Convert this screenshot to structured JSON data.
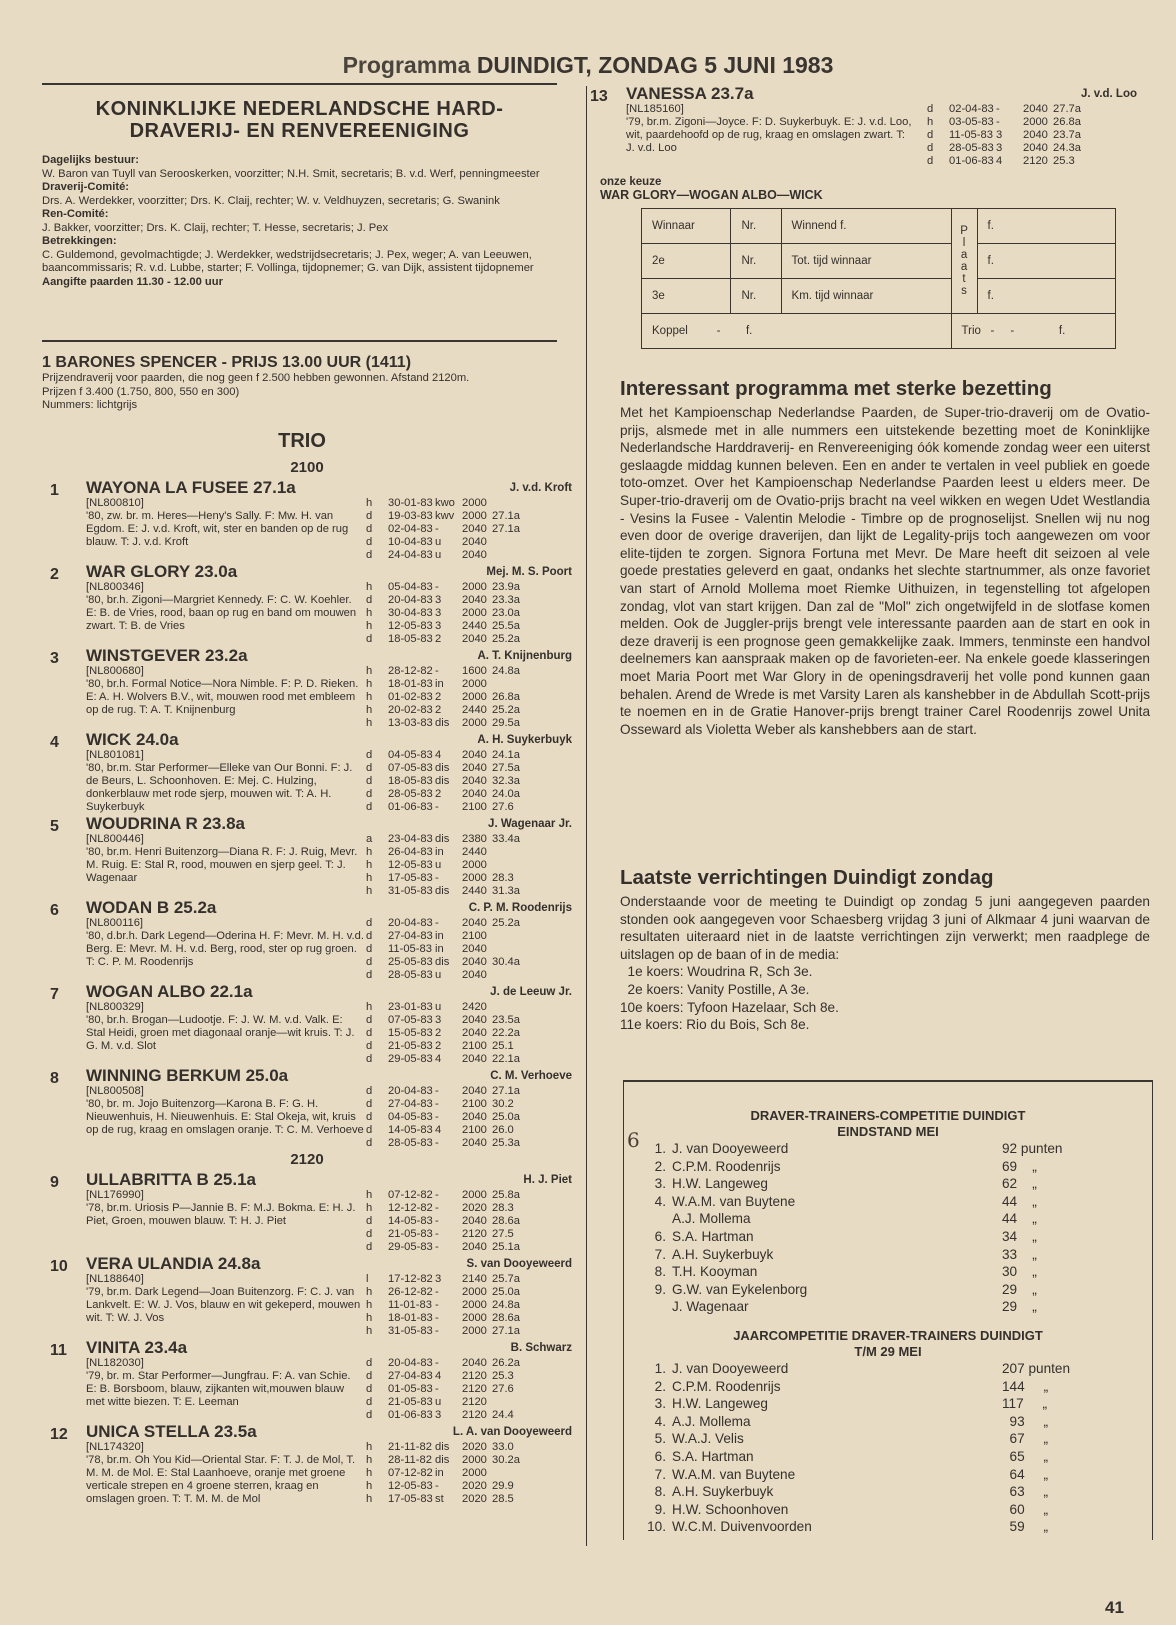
{
  "title": {
    "prefix": "Programma",
    "main": "DUINDIGT, ZONDAG 5 JUNI 1983"
  },
  "club": {
    "name_line1": "KONINKLIJKE NEDERLANDSCHE HARD-",
    "name_line2": "DRAVERIJ- EN RENVEREENIGING",
    "sections": [
      {
        "label": "Dagelijks bestuur:",
        "text": "W. Baron van Tuyll van Serooskerken, voorzitter; N.H. Smit, secretaris; B. v.d. Werf, penningmeester"
      },
      {
        "label": "Draverij-Comité:",
        "text": "Drs. A. Werdekker, voorzitter; Drs. K. Claij, rechter; W. v. Veldhuyzen, secretaris; G. Swanink"
      },
      {
        "label": "Ren-Comité:",
        "text": "J. Bakker, voorzitter; Drs. K. Claij, rechter; T. Hesse, secretaris; J. Pex"
      },
      {
        "label": "Betrekkingen:",
        "text": "C. Guldemond, gevolmachtigde; J. Werdekker, wedstrijdsecretaris; J. Pex, weger; A. van Leeuwen, baancommissaris; R. v.d. Lubbe, starter; F. Vollinga, tijdopnemer; G. van Dijk, assistent tijdopnemer"
      }
    ],
    "aangifte": "Aangifte paarden 11.30 - 12.00 uur"
  },
  "race": {
    "title": "1 BARONES SPENCER - PRIJS 13.00 UUR (1411)",
    "conditions": "Prijzendraverij voor paarden, die nog geen f 2.500 hebben gewonnen. Afstand 2120m.",
    "prizes": "Prijzen f 3.400 (1.750, 800, 550 en 300)",
    "numbers": "Nummers: lichtgrijs",
    "type": "TRIO",
    "distance_1": "2100",
    "distance_2": "2120"
  },
  "entries": [
    {
      "num": "1",
      "name": "WAYONA LA FUSEE 27.1a",
      "id": "[NL800810]",
      "desc": "'80, zw. br. m. Heres—Heny's Sally. F: Mw. H. van Egdom. E: J. v.d. Kroft, wit, ster en banden op de rug blauw. T: J. v.d. Kroft",
      "trainer": "J. v.d. Kroft",
      "rows": [
        [
          "h",
          "30-01-83",
          "kwo",
          "2000",
          ""
        ],
        [
          "d",
          "19-03-83",
          "kwv",
          "2000",
          "27.1a"
        ],
        [
          "d",
          "02-04-83",
          "-",
          "2040",
          "27.1a"
        ],
        [
          "d",
          "10-04-83",
          "u",
          "2040",
          ""
        ],
        [
          "d",
          "24-04-83",
          "u",
          "2040",
          ""
        ]
      ]
    },
    {
      "num": "2",
      "name": "WAR GLORY 23.0a",
      "id": "[NL800346]",
      "desc": "'80, br.h. Zigoni—Margriet Kennedy. F: C. W. Koehler. E: B. de Vries, rood, baan op rug en band om mouwen zwart. T: B. de Vries",
      "trainer": "Mej. M. S. Poort",
      "rows": [
        [
          "h",
          "05-04-83",
          "-",
          "2000",
          "23.9a"
        ],
        [
          "d",
          "20-04-83",
          "3",
          "2040",
          "23.3a"
        ],
        [
          "h",
          "30-04-83",
          "3",
          "2000",
          "23.0a"
        ],
        [
          "h",
          "12-05-83",
          "3",
          "2440",
          "25.5a"
        ],
        [
          "d",
          "18-05-83",
          "2",
          "2040",
          "25.2a"
        ]
      ]
    },
    {
      "num": "3",
      "name": "WINSTGEVER 23.2a",
      "id": "[NL800680]",
      "desc": "'80, br.h. Formal Notice—Nora Nimble. F: P. D. Rieken. E: A. H. Wolvers B.V., wit, mouwen rood met embleem op de rug. T: A. T. Knijnenburg",
      "trainer": "A. T. Knijnenburg",
      "rows": [
        [
          "h",
          "28-12-82",
          "-",
          "1600",
          "24.8a"
        ],
        [
          "h",
          "18-01-83",
          "in",
          "2000",
          ""
        ],
        [
          "h",
          "01-02-83",
          "2",
          "2000",
          "26.8a"
        ],
        [
          "h",
          "20-02-83",
          "2",
          "2440",
          "25.2a"
        ],
        [
          "h",
          "13-03-83",
          "dis",
          "2000",
          "29.5a"
        ]
      ]
    },
    {
      "num": "4",
      "name": "WICK 24.0a",
      "id": "[NL801081]",
      "desc": "'80, br.m. Star Performer—Elleke van Our Bonni. F: J. de Beurs, L. Schoonhoven. E: Mej. C. Hulzing, donkerblauw met rode sjerp, mouwen wit. T: A. H. Suykerbuyk",
      "trainer": "A. H. Suykerbuyk",
      "rows": [
        [
          "d",
          "04-05-83",
          "4",
          "2040",
          "24.1a"
        ],
        [
          "d",
          "07-05-83",
          "dis",
          "2040",
          "27.5a"
        ],
        [
          "d",
          "18-05-83",
          "dis",
          "2040",
          "32.3a"
        ],
        [
          "d",
          "28-05-83",
          "2",
          "2040",
          "24.0a"
        ],
        [
          "d",
          "01-06-83",
          "-",
          "2100",
          "27.6"
        ]
      ]
    },
    {
      "num": "5",
      "name": "WOUDRINA R 23.8a",
      "id": "[NL800446]",
      "desc": "'80, br.m. Henri Buitenzorg—Diana R. F: J. Ruig, Mevr. M. Ruig. E: Stal R, rood, mouwen en sjerp geel. T: J. Wagenaar",
      "trainer": "J. Wagenaar Jr.",
      "rows": [
        [
          "a",
          "23-04-83",
          "dis",
          "2380",
          "33.4a"
        ],
        [
          "h",
          "26-04-83",
          "in",
          "2440",
          ""
        ],
        [
          "h",
          "12-05-83",
          "u",
          "2000",
          ""
        ],
        [
          "h",
          "17-05-83",
          "-",
          "2000",
          "28.3"
        ],
        [
          "h",
          "31-05-83",
          "dis",
          "2440",
          "31.3a"
        ]
      ]
    },
    {
      "num": "6",
      "name": "WODAN B 25.2a",
      "id": "[NL800116]",
      "desc": "'80, d.br.h. Dark Legend—Oderina H. F: Mevr. M. H. v.d. Berg. E: Mevr. M. H. v.d. Berg, rood, ster op rug groen. T: C. P. M. Roodenrijs",
      "trainer": "C. P. M. Roodenrijs",
      "rows": [
        [
          "d",
          "20-04-83",
          "-",
          "2040",
          "25.2a"
        ],
        [
          "d",
          "27-04-83",
          "in",
          "2100",
          ""
        ],
        [
          "d",
          "11-05-83",
          "in",
          "2040",
          ""
        ],
        [
          "d",
          "25-05-83",
          "dis",
          "2040",
          "30.4a"
        ],
        [
          "d",
          "28-05-83",
          "u",
          "2040",
          ""
        ]
      ]
    },
    {
      "num": "7",
      "name": "WOGAN ALBO 22.1a",
      "id": "[NL800329]",
      "desc": "'80, br.h. Brogan—Ludootje. F: J. W. M. v.d. Valk. E: Stal Heidi, groen met diagonaal oranje—wit kruis. T: J. G. M. v.d. Slot",
      "trainer": "J. de Leeuw Jr.",
      "rows": [
        [
          "h",
          "23-01-83",
          "u",
          "2420",
          ""
        ],
        [
          "d",
          "07-05-83",
          "3",
          "2040",
          "23.5a"
        ],
        [
          "d",
          "15-05-83",
          "2",
          "2040",
          "22.2a"
        ],
        [
          "d",
          "21-05-83",
          "2",
          "2100",
          "25.1"
        ],
        [
          "d",
          "29-05-83",
          "4",
          "2040",
          "22.1a"
        ]
      ]
    },
    {
      "num": "8",
      "name": "WINNING BERKUM 25.0a",
      "id": "[NL800508]",
      "desc": "'80, br. m. Jojo Buitenzorg—Karona B. F: G. H. Nieuwenhuis, H. Nieuwenhuis. E: Stal Okeja, wit, kruis op de rug, kraag en omslagen oranje. T: C. M. Verhoeve",
      "trainer": "C. M. Verhoeve",
      "rows": [
        [
          "d",
          "20-04-83",
          "-",
          "2040",
          "27.1a"
        ],
        [
          "d",
          "27-04-83",
          "-",
          "2100",
          "30.2"
        ],
        [
          "d",
          "04-05-83",
          "-",
          "2040",
          "25.0a"
        ],
        [
          "d",
          "14-05-83",
          "4",
          "2100",
          "26.0"
        ],
        [
          "d",
          "28-05-83",
          "-",
          "2040",
          "25.3a"
        ]
      ]
    },
    {
      "num": "9",
      "name": "ULLABRITTA B 25.1a",
      "id": "[NL176990]",
      "desc": "'78, br.m. Uriosis P—Jannie B. F: M.J. Bokma. E: H. J. Piet, Groen, mouwen blauw. T: H. J. Piet",
      "trainer": "H. J. Piet",
      "rows": [
        [
          "h",
          "07-12-82",
          "-",
          "2000",
          "25.8a"
        ],
        [
          "h",
          "12-12-82",
          "-",
          "2020",
          "28.3"
        ],
        [
          "d",
          "14-05-83",
          "-",
          "2040",
          "28.6a"
        ],
        [
          "d",
          "21-05-83",
          "-",
          "2120",
          "27.5"
        ],
        [
          "d",
          "29-05-83",
          "-",
          "2040",
          "25.1a"
        ]
      ]
    },
    {
      "num": "10",
      "name": "VERA ULANDIA 24.8a",
      "id": "[NL188640]",
      "desc": "'79, br.m. Dark Legend—Joan Buitenzorg. F: C. J. van Lankvelt. E: W. J. Vos, blauw en wit gekeperd, mouwen wit. T: W. J. Vos",
      "trainer": "S. van Dooyeweerd",
      "rows": [
        [
          "l",
          "17-12-82",
          "3",
          "2140",
          "25.7a"
        ],
        [
          "h",
          "26-12-82",
          "-",
          "2000",
          "25.0a"
        ],
        [
          "h",
          "11-01-83",
          "-",
          "2000",
          "24.8a"
        ],
        [
          "h",
          "18-01-83",
          "-",
          "2000",
          "28.6a"
        ],
        [
          "h",
          "31-05-83",
          "-",
          "2000",
          "27.1a"
        ]
      ]
    },
    {
      "num": "11",
      "name": "VINITA 23.4a",
      "id": "[NL182030]",
      "desc": "'79, br. m. Star Performer—Jungfrau. F: A. van Schie. E: B. Borsboom, blauw, zijkanten wit,mouwen blauw met witte biezen. T: E. Leeman",
      "trainer": "B. Schwarz",
      "rows": [
        [
          "d",
          "20-04-83",
          "-",
          "2040",
          "26.2a"
        ],
        [
          "d",
          "27-04-83",
          "4",
          "2120",
          "25.3"
        ],
        [
          "d",
          "01-05-83",
          "-",
          "2120",
          "27.6"
        ],
        [
          "d",
          "21-05-83",
          "u",
          "2120",
          ""
        ],
        [
          "d",
          "01-06-83",
          "3",
          "2120",
          "24.4"
        ]
      ]
    },
    {
      "num": "12",
      "name": "UNICA STELLA 23.5a",
      "id": "[NL174320]",
      "desc": "'78, br.m. Oh You Kid—Oriental Star. F: T. J. de Mol, T. M. M. de Mol. E: Stal Laanhoeve, oranje met groene verticale strepen en 4 groene sterren, kraag en omslagen groen. T: T. M. M. de Mol",
      "trainer": "L. A. van Dooyeweerd",
      "rows": [
        [
          "h",
          "21-11-82",
          "dis",
          "2020",
          "33.0"
        ],
        [
          "h",
          "28-11-82",
          "dis",
          "2000",
          "30.2a"
        ],
        [
          "h",
          "07-12-82",
          "in",
          "2000",
          ""
        ],
        [
          "h",
          "12-05-83",
          "-",
          "2020",
          "29.9"
        ],
        [
          "h",
          "17-05-83",
          "st",
          "2020",
          "28.5"
        ]
      ]
    },
    {
      "num": "13",
      "name": "VANESSA 23.7a",
      "id": "[NL185160]",
      "desc": "'79, br.m. Zigoni—Joyce. F: D. Suykerbuyk. E: J. v.d. Loo, wit, paardehoofd op de rug, kraag en omslagen zwart. T: J. v.d. Loo",
      "trainer": "J. v.d. Loo",
      "rows": [
        [
          "d",
          "02-04-83",
          "-",
          "2040",
          "27.7a"
        ],
        [
          "h",
          "03-05-83",
          "-",
          "2000",
          "26.8a"
        ],
        [
          "d",
          "11-05-83",
          "3",
          "2040",
          "23.7a"
        ],
        [
          "d",
          "28-05-83",
          "3",
          "2040",
          "24.3a"
        ],
        [
          "d",
          "01-06-83",
          "4",
          "2120",
          "25.3"
        ]
      ]
    }
  ],
  "keuze": {
    "label": "onze keuze",
    "picks": "WAR GLORY—WOGAN ALBO—WICK"
  },
  "bet_form": {
    "winnaar": "Winnaar",
    "nr": "Nr.",
    "winnend": "Winnend f.",
    "plaats": "P l a a t s",
    "f": "f.",
    "second": "2e",
    "tot_tijd": "Tot. tijd winnaar",
    "third": "3e",
    "km_tijd": "Km. tijd winnaar",
    "koppel": "Koppel",
    "koppel_fill": "-        f.",
    "trio": "Trio",
    "trio_fill": "-     -              f."
  },
  "article1": {
    "heading": "Interessant programma met sterke bezetting",
    "body": "Met het Kampioenschap Nederlandse Paarden, de Super-trio-draverij om de Ovatio-prijs, alsmede met in alle nummers een uitstekende bezetting moet de Koninklijke Nederlandsche Harddraverij- en Renvereeniging óók komende zondag weer een uiterst geslaagde middag kunnen beleven. Een en ander te vertalen in veel publiek en goede toto-omzet. Over het Kampioenschap Nederlandse Paarden leest u elders meer. De Super-trio-draverij om de Ovatio-prijs bracht na veel wikken en wegen Udet Westlandia - Vesins la Fusee - Valentin Melodie - Timbre op de prognoselijst. Snellen wij nu nog even door de overige draverijen, dan lijkt de Legality-prijs toch aangewezen om voor elite-tijden te zorgen. Signora Fortuna met Mevr. De Mare heeft dit seizoen al vele goede prestaties geleverd en gaat, ondanks het slechte startnummer, als onze favoriet van start of Arnold Mollema moet Riemke Uithuizen, in tegenstelling tot afgelopen zondag, vlot van start krijgen. Dan zal de \"Mol\" zich ongetwijfeld in de slotfase komen melden. Ook de Juggler-prijs brengt vele interessante paarden aan de start en ook in deze draverij is een prognose geen gemakkelijke zaak. Immers, tenminste een handvol deelnemers kan aanspraak maken op de favorieten-eer. Na enkele goede klasseringen moet Maria Poort met War Glory in de openingsdraverij het volle pond kunnen gaan behalen. Arend de Wrede is met Varsity Laren als kanshebber in de Abdullah Scott-prijs te noemen en in de Gratie Hanover-prijs brengt trainer Carel Roodenrijs zowel Unita Osseward als Violetta Weber als kanshebbers aan de start."
  },
  "article2": {
    "heading": "Laatste verrichtingen Duindigt zondag",
    "body": "Onderstaande voor de meeting te Duindigt op zondag 5 juni aangegeven paarden stonden ook aangegeven voor Schaesberg vrijdag 3 juni of Alkmaar 4 juni waarvan de resultaten uiteraard niet in de laatste verrichtingen zijn verwerkt; men raadplege de uitslagen op de baan of in de media:",
    "koersen": [
      "  1e koers: Woudrina R, Sch 3e.",
      "  2e koers: Vanity Postille, A 3e.",
      "10e koers: Tyfoon Hazelaar, Sch 8e.",
      "11e koers: Rio du Bois, Sch 8e."
    ]
  },
  "competition": {
    "mei_title1": "DRAVER-TRAINERS-COMPETITIE DUINDIGT",
    "mei_title2": "EINDSTAND MEI",
    "mei": [
      [
        "1.",
        "J. van Dooyeweerd",
        "92 punten"
      ],
      [
        "2.",
        "C.P.M. Roodenrijs",
        "69    „"
      ],
      [
        "3.",
        "H.W. Langeweg",
        "62    „"
      ],
      [
        "4.",
        "W.A.M. van Buytene",
        "44    „"
      ],
      [
        "",
        "A.J. Mollema",
        "44    „"
      ],
      [
        "6.",
        "S.A. Hartman",
        "34    „"
      ],
      [
        "7.",
        "A.H. Suykerbuyk",
        "33    „"
      ],
      [
        "8.",
        "T.H. Kooyman",
        "30    „"
      ],
      [
        "9.",
        "G.W. van Eykelenborg",
        "29    „"
      ],
      [
        "",
        "J. Wagenaar",
        "29    „"
      ]
    ],
    "jaar_title1": "JAARCOMPETITIE DRAVER-TRAINERS DUINDIGT",
    "jaar_title2": "T/M 29 MEI",
    "jaar": [
      [
        "1.",
        "J. van Dooyeweerd",
        "207 punten"
      ],
      [
        "2.",
        "C.P.M. Roodenrijs",
        "144     „"
      ],
      [
        "3.",
        "H.W. Langeweg",
        "117     „"
      ],
      [
        "4.",
        "A.J. Mollema",
        "  93     „"
      ],
      [
        "5.",
        "W.A.J. Velis",
        "  67     „"
      ],
      [
        "6.",
        "S.A. Hartman",
        "  65     „"
      ],
      [
        "7.",
        "W.A.M. van Buytene",
        "  64     „"
      ],
      [
        "8.",
        "A.H. Suykerbuyk",
        "  63     „"
      ],
      [
        "9.",
        "H.W. Schoonhoven",
        "  60     „"
      ],
      [
        "10.",
        "W.C.M. Duivenvoorden",
        "  59     „"
      ]
    ],
    "handwritten_mark": "6"
  },
  "page_number": "41"
}
